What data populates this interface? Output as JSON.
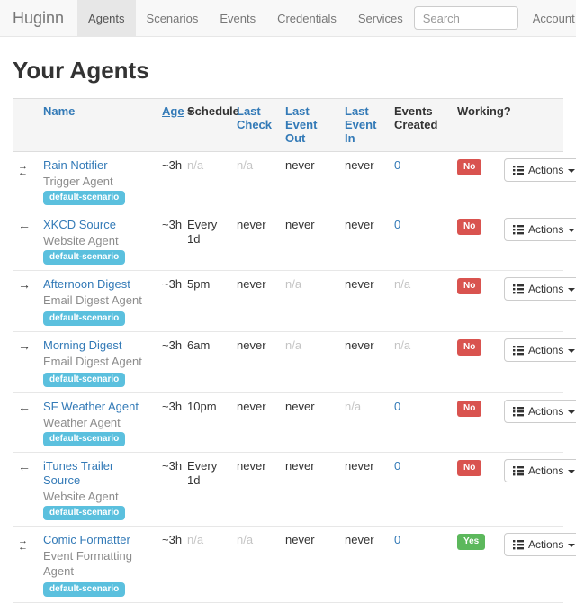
{
  "colors": {
    "link": "#337ab7",
    "text": "#333333",
    "muted": "#c4c4c4",
    "navbar_bg": "#f8f8f8",
    "navbar_border": "#e7e7e7",
    "nav_text": "#777777",
    "nav_active_bg": "#e7e7e7",
    "nav_active_text": "#555555",
    "scenario_badge": "#5bc0de",
    "working_no": "#d9534f",
    "working_yes": "#5cb85c"
  },
  "navbar": {
    "brand": "Huginn",
    "items": [
      {
        "label": "Agents",
        "active": true
      },
      {
        "label": "Scenarios",
        "active": false
      },
      {
        "label": "Events",
        "active": false
      },
      {
        "label": "Credentials",
        "active": false
      },
      {
        "label": "Services",
        "active": false
      }
    ],
    "search_placeholder": "Search",
    "account_label": "Account"
  },
  "page": {
    "title": "Your Agents"
  },
  "table": {
    "headers": {
      "name": "Name",
      "age": "Age",
      "schedule": "Schedule",
      "last_check": "Last Check",
      "last_event_out": "Last Event Out",
      "last_event_in": "Last Event In",
      "events_created": "Events Created",
      "working": "Working?"
    },
    "sorted_by": "age",
    "actions_label": "Actions",
    "rows": [
      {
        "icon": "exchange",
        "name": "Rain Notifier",
        "type": "Trigger Agent",
        "scenario": "default-scenario",
        "badge_own_line": false,
        "age": "~3h",
        "schedule": "n/a",
        "last_check": "n/a",
        "last_event_out": "never",
        "last_event_in": "never",
        "events_created": "0",
        "working": "No"
      },
      {
        "icon": "arrow-left",
        "name": "XKCD Source",
        "type": "Website Agent",
        "scenario": "default-scenario",
        "badge_own_line": false,
        "age": "~3h",
        "schedule": "Every 1d",
        "last_check": "never",
        "last_event_out": "never",
        "last_event_in": "never",
        "events_created": "0",
        "working": "No"
      },
      {
        "icon": "arrow-right",
        "name": "Afternoon Digest",
        "type": "Email Digest Agent",
        "scenario": "default-scenario",
        "badge_own_line": true,
        "age": "~3h",
        "schedule": "5pm",
        "last_check": "never",
        "last_event_out": "n/a",
        "last_event_in": "never",
        "events_created": "n/a",
        "working": "No"
      },
      {
        "icon": "arrow-right",
        "name": "Morning Digest",
        "type": "Email Digest Agent",
        "scenario": "default-scenario",
        "badge_own_line": true,
        "age": "~3h",
        "schedule": "6am",
        "last_check": "never",
        "last_event_out": "n/a",
        "last_event_in": "never",
        "events_created": "n/a",
        "working": "No"
      },
      {
        "icon": "arrow-left",
        "name": "SF Weather Agent",
        "type": "Weather Agent",
        "scenario": "default-scenario",
        "badge_own_line": false,
        "age": "~3h",
        "schedule": "10pm",
        "last_check": "never",
        "last_event_out": "never",
        "last_event_in": "n/a",
        "events_created": "0",
        "working": "No"
      },
      {
        "icon": "arrow-left",
        "name": "iTunes Trailer Source",
        "type": "Website Agent",
        "scenario": "default-scenario",
        "badge_own_line": false,
        "age": "~3h",
        "schedule": "Every 1d",
        "last_check": "never",
        "last_event_out": "never",
        "last_event_in": "never",
        "events_created": "0",
        "working": "No"
      },
      {
        "icon": "exchange",
        "name": "Comic Formatter",
        "type": "Event Formatting Agent",
        "scenario": "default-scenario",
        "badge_own_line": true,
        "age": "~3h",
        "schedule": "n/a",
        "last_check": "n/a",
        "last_event_out": "never",
        "last_event_in": "never",
        "events_created": "0",
        "working": "Yes"
      }
    ]
  }
}
